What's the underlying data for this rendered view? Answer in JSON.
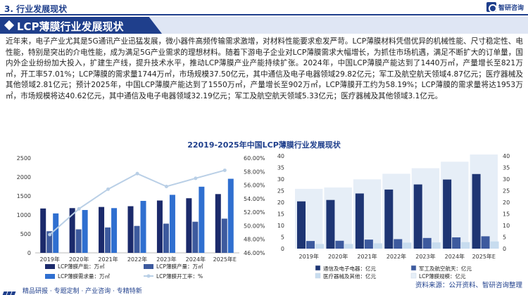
{
  "header": {
    "section_label": "3. 行业发展现状",
    "logo_text": "智研咨询"
  },
  "title": "LCP薄膜行业发展现状",
  "body_text": "近年来，电子产业尤其是5G通讯产业迅猛发展，微小器件高频传输需求激增，对材料性能要求愈发严苛。LCP薄膜材料凭借优异的机械性能、尺寸稳定性、电性能，特别是突出的介电性能，成为满足5G产业需求的理想材料。随着下游电子企业对LCP薄膜需求大幅增长，为抓住市场机遇，满足不断扩大的订单量，国内外企业纷纷加大投入，扩建生产线，提升技术水平，推动LCP薄膜产业产能持续扩张。2024年，中国LCP薄膜产能达到了1440万㎡，产量增长至821万㎡，开工率57.01%；LCP薄膜的需求量1744万㎡，市场规模37.50亿元，其中通信及电子电器领域29.82亿元；军工及航空航天领域4.87亿元；医疗器械及其他领域2.81亿元；预计2025年，中国LCP薄膜产能达到了1550万㎡，产量增长至902万㎡，LCP薄膜开工约为58.19%；LCP薄膜的需求量将达1953万㎡，市场规模将达40.62亿元，其中通信及电子电器领域32.19亿元；军工及航空航天领域5.33亿元；医疗器械及其他领域3.1亿元。",
  "chart_title": "22019-2025年中国LCP薄膜行业发展现状",
  "colors": {
    "navy": "#1b2a6b",
    "steel": "#3d5a9e",
    "blue": "#2f6fd0",
    "light_line": "#b9cfe6",
    "market_bg": "#e6eef7",
    "comm": "#1e3573",
    "mil": "#3d5a9e",
    "med": "#c7dcef"
  },
  "chart_data": [
    {
      "type": "bar",
      "categories": [
        "2019年",
        "2020年",
        "2021年",
        "2022年",
        "2023年",
        "2024年",
        "2025年E"
      ],
      "series": [
        {
          "name": "LCP薄膜产能：万㎡",
          "values": [
            1170,
            1180,
            1210,
            1230,
            1380,
            1440,
            1550
          ]
        },
        {
          "name": "LCP薄膜产量：万㎡",
          "values": [
            570,
            620,
            670,
            710,
            770,
            821,
            902
          ]
        },
        {
          "name": "LCP薄膜需求量：万㎡",
          "values": [
            1040,
            1130,
            1180,
            1370,
            1530,
            1744,
            1953
          ]
        },
        {
          "name": "LCP薄膜开工率：%",
          "values": [
            48.7,
            52.5,
            55.4,
            57.7,
            55.8,
            57.01,
            58.19
          ],
          "axis": "right",
          "type": "line"
        }
      ],
      "ylim": [
        0,
        2500
      ],
      "yticks": [
        "0",
        "500",
        "1000",
        "1500",
        "2000",
        "2500"
      ],
      "y2lim": [
        46,
        60
      ],
      "y2ticks": [
        "46.00%",
        "48.00%",
        "50.00%",
        "52.00%",
        "54.00%",
        "56.00%",
        "58.00%",
        "60.00%"
      ],
      "legend": "bottom"
    },
    {
      "type": "bar",
      "categories": [
        "2019年",
        "2020年",
        "2021年",
        "2022年",
        "2023年",
        "2024年",
        "2025年E"
      ],
      "series": [
        {
          "name": "LCP薄膜规模：亿元",
          "values": [
            25.8,
            26.4,
            29.9,
            32.3,
            34.7,
            37.5,
            40.62
          ],
          "style": "background"
        },
        {
          "name": "通信及电子电器：亿元",
          "values": [
            20.4,
            21.0,
            23.8,
            25.5,
            27.7,
            29.82,
            32.19
          ]
        },
        {
          "name": "军工及航空航天：亿元",
          "values": [
            3.3,
            3.4,
            3.9,
            4.1,
            4.6,
            4.87,
            5.33
          ]
        },
        {
          "name": "医疗器械及其他：亿元",
          "values": [
            2.0,
            2.0,
            2.3,
            2.6,
            2.7,
            2.81,
            3.1
          ]
        }
      ],
      "ylim": [
        0,
        40
      ],
      "yticks": [
        "0",
        "5",
        "10",
        "15",
        "20",
        "25",
        "30",
        "35",
        "40"
      ],
      "legend": "bottom"
    }
  ],
  "source": "资料来源：公开资料、智研咨询整理",
  "footer_text": "精品研报 · 专题定制 · 产业咨询 · 专精特新"
}
